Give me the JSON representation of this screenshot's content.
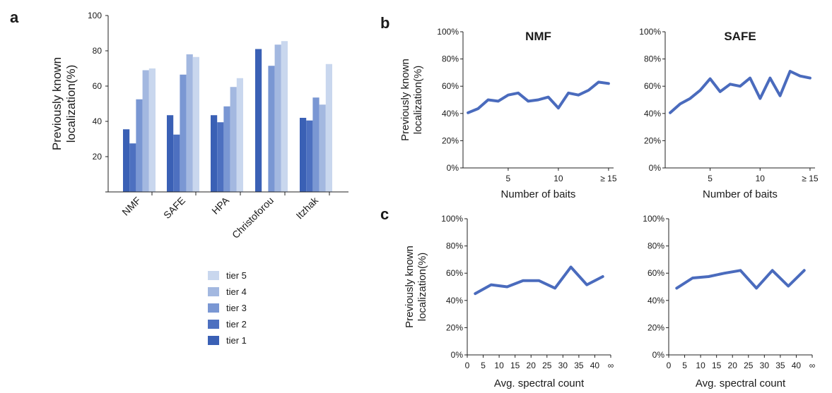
{
  "panel_labels": {
    "a": "a",
    "b": "b",
    "c": "c"
  },
  "colors": {
    "tier 1": "#3a60b5",
    "tier 2": "#4d70c0",
    "tier 3": "#7a97d3",
    "tier 4": "#a3b8e0",
    "tier 5": "#c9d7ee",
    "line": "#4a6bbd"
  },
  "chart_data": [
    {
      "id": "a",
      "type": "bar",
      "ylabel_lines": [
        "Previously known",
        "localization(%)"
      ],
      "ylim": [
        0,
        100
      ],
      "yticks": [
        "20",
        "40",
        "60",
        "80",
        "100"
      ],
      "categories": [
        "NMF",
        "SAFE",
        "HPA",
        "Christoforou",
        "Itzhak"
      ],
      "series": [
        {
          "name": "tier 1",
          "values": [
            35.5,
            43.5,
            43.5,
            81,
            42
          ]
        },
        {
          "name": "tier 2",
          "values": [
            27.5,
            32.5,
            39.5,
            null,
            40.5
          ]
        },
        {
          "name": "tier 3",
          "values": [
            52.5,
            66.5,
            48.5,
            71.5,
            53.5
          ]
        },
        {
          "name": "tier 4",
          "values": [
            69,
            78,
            59.5,
            83.5,
            49.5
          ]
        },
        {
          "name": "tier 5",
          "values": [
            70,
            76.5,
            64.5,
            85.5,
            72.5
          ]
        }
      ],
      "legend_order": [
        "tier 5",
        "tier 4",
        "tier 3",
        "tier 2",
        "tier 1"
      ],
      "legend": "bottom"
    },
    {
      "id": "b1",
      "type": "line",
      "title": "NMF",
      "ylabel_lines": [
        "Previously known",
        "localization(%)"
      ],
      "xlabel": "Number of baits",
      "yticks": [
        "0%",
        "20%",
        "40%",
        "60%",
        "80%",
        "100%"
      ],
      "ylim": [
        0,
        100
      ],
      "xlim": [
        0.5,
        15.5
      ],
      "xticks": [
        {
          "v": 5,
          "label": "5"
        },
        {
          "v": 10,
          "label": "10"
        },
        {
          "v": 15,
          "label": "≥ 15"
        }
      ],
      "x": [
        1,
        2,
        3,
        4,
        5,
        6,
        7,
        8,
        9,
        10,
        11,
        12,
        13,
        14,
        15
      ],
      "values": [
        40.5,
        43.5,
        50,
        49,
        53.5,
        55,
        49,
        50,
        52,
        44,
        55,
        53.5,
        57,
        63,
        62
      ]
    },
    {
      "id": "b2",
      "type": "line",
      "title": "SAFE",
      "xlabel": "Number of baits",
      "yticks": [
        "0%",
        "20%",
        "40%",
        "60%",
        "80%",
        "100%"
      ],
      "ylim": [
        0,
        100
      ],
      "xlim": [
        0.5,
        15.5
      ],
      "xticks": [
        {
          "v": 5,
          "label": "5"
        },
        {
          "v": 10,
          "label": "10"
        },
        {
          "v": 15,
          "label": "≥ 15"
        }
      ],
      "x": [
        1,
        2,
        3,
        4,
        5,
        6,
        7,
        8,
        9,
        10,
        11,
        12,
        13,
        14,
        15
      ],
      "values": [
        40.5,
        47,
        51,
        57,
        65.5,
        56,
        61.5,
        60,
        66,
        51,
        66,
        53,
        71,
        67.5,
        66
      ]
    },
    {
      "id": "c1",
      "type": "line",
      "ylabel_lines": [
        "Previously known",
        "localization(%)"
      ],
      "xlabel": "Avg. spectral count",
      "yticks": [
        "0%",
        "20%",
        "40%",
        "60%",
        "80%",
        "100%"
      ],
      "ylim": [
        0,
        100
      ],
      "xlim": [
        0,
        45
      ],
      "xticks": [
        {
          "v": 0,
          "label": "0"
        },
        {
          "v": 5,
          "label": "5"
        },
        {
          "v": 10,
          "label": "10"
        },
        {
          "v": 15,
          "label": "15"
        },
        {
          "v": 20,
          "label": "20"
        },
        {
          "v": 25,
          "label": "25"
        },
        {
          "v": 30,
          "label": "30"
        },
        {
          "v": 35,
          "label": "35"
        },
        {
          "v": 40,
          "label": "40"
        },
        {
          "v": 45,
          "label": "∞"
        }
      ],
      "x": [
        2.5,
        7.5,
        12.5,
        17.5,
        22.5,
        27.5,
        32.5,
        37.5,
        42.5
      ],
      "values": [
        45,
        51.5,
        50,
        54.5,
        54.5,
        49,
        64.5,
        51.5,
        57.5
      ]
    },
    {
      "id": "c2",
      "type": "line",
      "xlabel": "Avg. spectral count",
      "yticks": [
        "0%",
        "20%",
        "40%",
        "60%",
        "80%",
        "100%"
      ],
      "ylim": [
        0,
        100
      ],
      "xlim": [
        0,
        45
      ],
      "xticks": [
        {
          "v": 0,
          "label": "0"
        },
        {
          "v": 5,
          "label": "5"
        },
        {
          "v": 10,
          "label": "10"
        },
        {
          "v": 15,
          "label": "15"
        },
        {
          "v": 20,
          "label": "20"
        },
        {
          "v": 25,
          "label": "25"
        },
        {
          "v": 30,
          "label": "30"
        },
        {
          "v": 35,
          "label": "35"
        },
        {
          "v": 40,
          "label": "40"
        },
        {
          "v": 45,
          "label": "∞"
        }
      ],
      "x": [
        2.5,
        7.5,
        12.5,
        17.5,
        22.5,
        27.5,
        32.5,
        37.5,
        42.5
      ],
      "values": [
        49,
        56.5,
        57.5,
        60,
        62,
        49,
        62,
        50.5,
        62
      ]
    }
  ]
}
